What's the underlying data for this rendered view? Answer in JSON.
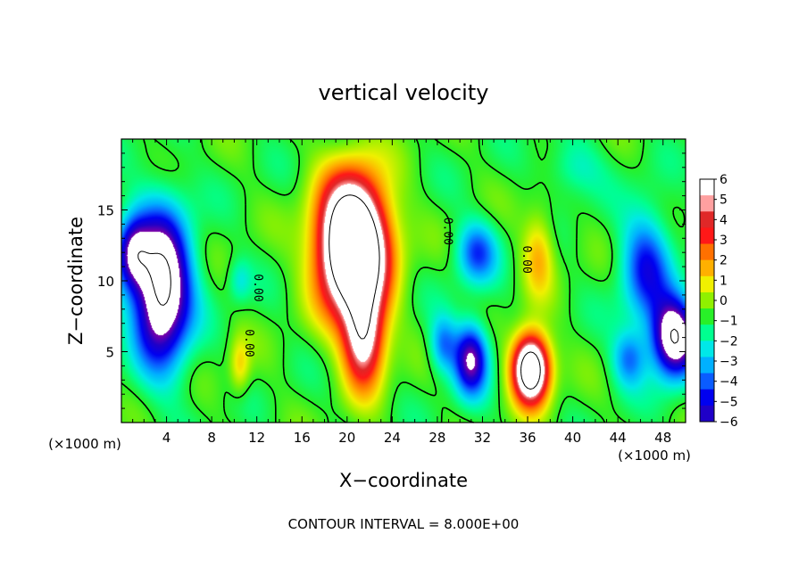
{
  "chart_data": {
    "type": "heatmap",
    "title": "vertical velocity",
    "xlabel": "X−coordinate",
    "ylabel": "Z−coordinate",
    "x_unit": "(×1000 m)",
    "x_unit_right": "(×1000 m)",
    "xlim": [
      0,
      50
    ],
    "ylim": [
      0,
      20
    ],
    "x_ticks": [
      4,
      8,
      12,
      16,
      20,
      24,
      28,
      32,
      36,
      40,
      44,
      48
    ],
    "y_ticks": [
      5,
      10,
      15
    ],
    "colorbar_ticks": [
      "6",
      "5",
      "4",
      "3",
      "2",
      "1",
      "0",
      "−1",
      "−2",
      "−3",
      "−4",
      "−5",
      "−6"
    ],
    "colorbar_range": [
      -6,
      6
    ],
    "contour_zero_label": "0.00",
    "footer": "CONTOUR INTERVAL = 8.000E+00",
    "colormap": [
      "#7b00a8",
      "#1f00c8",
      "#0000f0",
      "#0a5cff",
      "#00b0ff",
      "#00e8e8",
      "#00ff90",
      "#28f028",
      "#90f000",
      "#f0f000",
      "#ffb000",
      "#ff7000",
      "#ff1818",
      "#e02828",
      "#ffa0a0",
      "#ffffff"
    ],
    "features": [
      {
        "kind": "updraft",
        "x": 20.5,
        "z": 12.5,
        "sx": 3.0,
        "sz": 4.6,
        "w": 14
      },
      {
        "kind": "updraft",
        "x": 21.5,
        "z": 6.0,
        "sx": 1.8,
        "sz": 3.5,
        "w": 7
      },
      {
        "kind": "updraft",
        "x": 36.3,
        "z": 3.8,
        "sx": 1.6,
        "sz": 2.4,
        "w": 11
      },
      {
        "kind": "updraft",
        "x": 37.0,
        "z": 12.0,
        "sx": 1.4,
        "sz": 3.0,
        "w": 2.5
      },
      {
        "kind": "updraft",
        "x": 10.5,
        "z": 4.0,
        "sx": 0.9,
        "sz": 2.0,
        "w": 2.0
      },
      {
        "kind": "downdraft",
        "x": 3.6,
        "z": 9.5,
        "sx": 2.5,
        "sz": 5.2,
        "w": -9
      },
      {
        "kind": "downdraft",
        "x": 1.0,
        "z": 12.0,
        "sx": 1.5,
        "sz": 2.5,
        "w": -5
      },
      {
        "kind": "downdraft",
        "x": 49.0,
        "z": 6.0,
        "sx": 2.0,
        "sz": 2.8,
        "w": -8
      },
      {
        "kind": "downdraft",
        "x": 46.5,
        "z": 11.0,
        "sx": 2.2,
        "sz": 4.0,
        "w": -4
      },
      {
        "kind": "downdraft",
        "x": 31.0,
        "z": 4.5,
        "sx": 1.5,
        "sz": 2.5,
        "w": -6
      },
      {
        "kind": "downdraft",
        "x": 31.5,
        "z": 12.0,
        "sx": 1.8,
        "sz": 2.2,
        "w": -3.5
      },
      {
        "kind": "downdraft",
        "x": 28.5,
        "z": 5.5,
        "sx": 1.2,
        "sz": 2.0,
        "w": -3
      },
      {
        "kind": "downdraft",
        "x": 45.0,
        "z": 4.5,
        "sx": 1.5,
        "sz": 2.0,
        "w": -3
      },
      {
        "kind": "downdraft",
        "x": 10.5,
        "z": 10.0,
        "sx": 1.0,
        "sz": 1.5,
        "w": -1.5
      },
      {
        "kind": "downdraft",
        "x": 40.0,
        "z": 18.0,
        "sx": 2.5,
        "sz": 2.0,
        "w": -1.5
      }
    ]
  }
}
